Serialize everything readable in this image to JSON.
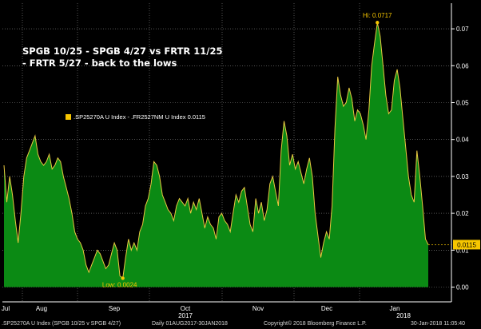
{
  "title_line1": "SPGB 10/25 - SPGB 4/27 vs FRTR 11/25",
  "title_line2": "- FRTR 5/27 - back to the lows",
  "legend_label": ".SP25270A U Index - .FR2527NM U Index 0.0115",
  "footer": {
    "series": ".SP25270A U Index (SPGB 10/25 v SPGB 4/27)",
    "range": "Daily 01AUG2017-30JAN2018",
    "copyright": "Copyright© 2018 Bloomberg Finance L.P.",
    "timestamp": "30-Jan-2018 11:05:40"
  },
  "colors": {
    "background": "#000000",
    "area_fill": "#0b8a14",
    "line": "#e8c840",
    "axis": "#ffffff",
    "grid": "#8a8a8a",
    "marker": "#f7c600",
    "tag_text": "#000000"
  },
  "chart_data": {
    "type": "area",
    "title": "SPGB 10/25 - SPGB 4/27 vs FRTR 11/25 - FRTR 5/27 - back to the lows",
    "xlabel": "",
    "ylabel": "",
    "ylim": [
      0,
      0.075
    ],
    "yticks": [
      0.0,
      0.01,
      0.02,
      0.03,
      0.04,
      0.05,
      0.06,
      0.07
    ],
    "ytick_labels": [
      "0.00",
      "0.01",
      "0.02",
      "0.03",
      "0.04",
      "0.05",
      "0.06",
      "0.07"
    ],
    "x_month_labels": [
      "Jul",
      "Aug",
      "Sep",
      "Oct",
      "Nov",
      "Dec",
      "Jan"
    ],
    "x_year_labels": [
      "2017",
      "2018"
    ],
    "grid": true,
    "legend_position": "top-left",
    "annotations": {
      "high": {
        "label": "Hi: 0.0717",
        "value": 0.0717
      },
      "low": {
        "label": "Low: 0.0024",
        "value": 0.0024
      },
      "last": {
        "label": "0.0115",
        "value": 0.0115
      }
    },
    "series": [
      {
        "name": ".SP25270A U Index - .FR2527NM U Index",
        "values": [
          0.033,
          0.023,
          0.03,
          0.025,
          0.018,
          0.012,
          0.02,
          0.03,
          0.035,
          0.037,
          0.039,
          0.041,
          0.036,
          0.034,
          0.033,
          0.034,
          0.036,
          0.032,
          0.033,
          0.035,
          0.034,
          0.03,
          0.027,
          0.024,
          0.02,
          0.015,
          0.013,
          0.012,
          0.01,
          0.006,
          0.004,
          0.006,
          0.008,
          0.01,
          0.009,
          0.007,
          0.005,
          0.006,
          0.009,
          0.012,
          0.01,
          0.003,
          0.0024,
          0.008,
          0.013,
          0.01,
          0.012,
          0.01,
          0.015,
          0.017,
          0.022,
          0.024,
          0.028,
          0.034,
          0.033,
          0.03,
          0.025,
          0.023,
          0.021,
          0.02,
          0.018,
          0.022,
          0.024,
          0.023,
          0.022,
          0.024,
          0.02,
          0.023,
          0.021,
          0.024,
          0.02,
          0.016,
          0.019,
          0.017,
          0.016,
          0.013,
          0.019,
          0.02,
          0.018,
          0.017,
          0.015,
          0.02,
          0.025,
          0.023,
          0.026,
          0.027,
          0.022,
          0.017,
          0.015,
          0.024,
          0.02,
          0.023,
          0.018,
          0.021,
          0.028,
          0.03,
          0.026,
          0.022,
          0.037,
          0.045,
          0.041,
          0.033,
          0.036,
          0.032,
          0.034,
          0.031,
          0.028,
          0.032,
          0.035,
          0.03,
          0.02,
          0.014,
          0.008,
          0.012,
          0.015,
          0.013,
          0.022,
          0.043,
          0.057,
          0.052,
          0.049,
          0.05,
          0.054,
          0.051,
          0.045,
          0.048,
          0.047,
          0.044,
          0.04,
          0.048,
          0.06,
          0.066,
          0.0717,
          0.068,
          0.06,
          0.052,
          0.047,
          0.048,
          0.056,
          0.059,
          0.054,
          0.046,
          0.038,
          0.03,
          0.025,
          0.023,
          0.037,
          0.03,
          0.022,
          0.013,
          0.0115
        ]
      }
    ]
  }
}
